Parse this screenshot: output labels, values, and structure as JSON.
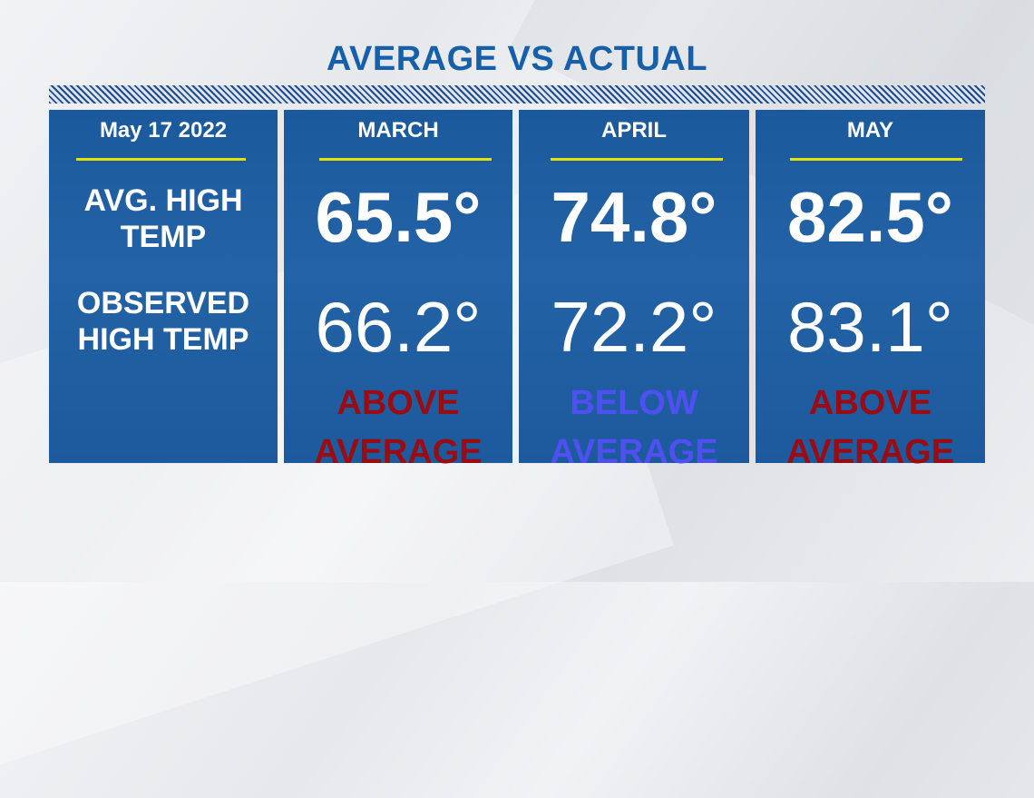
{
  "title": "AVERAGE VS ACTUAL",
  "label_column": {
    "date": "May 17 2022",
    "avg_label_line1": "AVG. HIGH",
    "avg_label_line2": "TEMP",
    "obs_label_line1": "OBSERVED",
    "obs_label_line2": "HIGH TEMP"
  },
  "months": [
    {
      "name": "MARCH",
      "avg_high": "65.5°",
      "observed_high": "66.2°",
      "status_line1": "ABOVE",
      "status_line2": "AVERAGE",
      "status_color": "#9a0c14"
    },
    {
      "name": "APRIL",
      "avg_high": "74.8°",
      "observed_high": "72.2°",
      "status_line1": "BELOW",
      "status_line2": "AVERAGE",
      "status_color": "#4f50f2"
    },
    {
      "name": "MAY",
      "avg_high": "82.5°",
      "observed_high": "83.1°",
      "status_line1": "ABOVE",
      "status_line2": "AVERAGE",
      "status_color": "#9a0c14"
    }
  ],
  "colors": {
    "panel": "#1f5ea2",
    "title": "#1560a8",
    "rule": "#e6e000"
  }
}
